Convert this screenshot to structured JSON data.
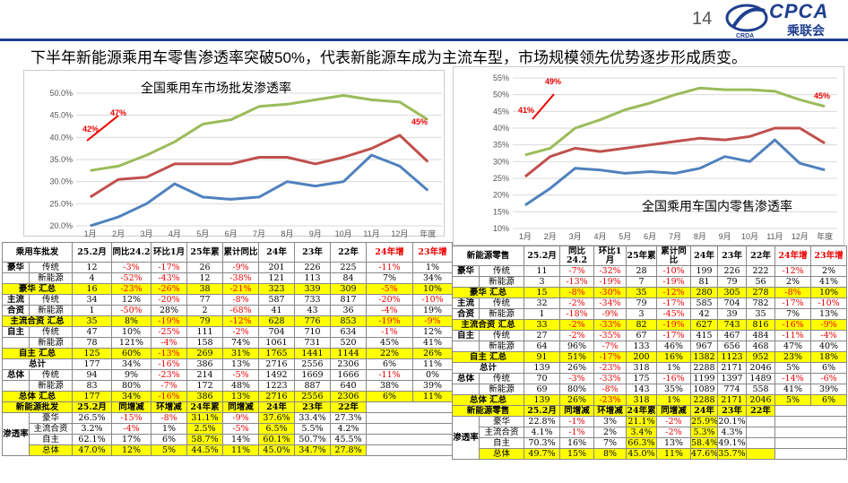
{
  "page": {
    "number": "14",
    "headline": "下半年新能源乘用车零售渗透率突破50%，代表新能源车成为主流车型，市场规模领先优势逐步形成质变。",
    "logo_text": "CPCA",
    "logo_cn": "乘联会",
    "logo_sub": "CRDA"
  },
  "chart_data": [
    {
      "type": "line",
      "title": "全国乘用车市场批发渗透率",
      "categories": [
        "1月",
        "2月",
        "3月",
        "4月",
        "5月",
        "6月",
        "7月",
        "8月",
        "9月",
        "10月",
        "11月",
        "12月",
        "年度"
      ],
      "yticks": [
        "50.0%",
        "45.0%",
        "40.0%",
        "35.0%",
        "30.0%",
        "25.0%",
        "20.0%"
      ],
      "ylim": [
        20,
        50
      ],
      "series": [
        {
          "color": "#9bbb59",
          "values": [
            32.5,
            33.5,
            36,
            39,
            43,
            44,
            47,
            47.5,
            48.5,
            49.5,
            48.5,
            48,
            44
          ]
        },
        {
          "color": "#c0504d",
          "values": [
            26.5,
            30.5,
            31,
            34,
            34,
            34,
            35.5,
            35.5,
            34,
            35.5,
            37.5,
            40.5,
            34.5
          ]
        },
        {
          "color": "#4f81bd",
          "values": [
            20,
            22,
            25,
            29.5,
            26.5,
            26,
            26.5,
            30,
            29,
            30,
            36,
            33.5,
            28
          ]
        }
      ],
      "annotations": [
        "42%",
        "47%",
        "45%"
      ]
    },
    {
      "type": "line",
      "title": "全国乘用车国内零售渗透率",
      "categories": [
        "1月",
        "2月",
        "3月",
        "4月",
        "5月",
        "6月",
        "7月",
        "8月",
        "9月",
        "10月",
        "11月",
        "12月",
        "年度"
      ],
      "yticks": [
        "55%",
        "50%",
        "45%",
        "40%",
        "35%",
        "30%",
        "25%",
        "20%",
        "15%",
        "10%"
      ],
      "ylim": [
        10,
        55
      ],
      "series": [
        {
          "color": "#9bbb59",
          "values": [
            32,
            34,
            40,
            42.5,
            45.5,
            47.5,
            50,
            52,
            51.5,
            51.5,
            51,
            48.5,
            46.5
          ]
        },
        {
          "color": "#c0504d",
          "values": [
            25.5,
            31.5,
            34,
            33,
            34,
            35,
            36,
            37,
            36.5,
            37.5,
            40,
            40,
            35.5
          ]
        },
        {
          "color": "#4f81bd",
          "values": [
            17,
            22,
            28,
            27.5,
            26.5,
            27,
            26.5,
            28,
            31.5,
            30,
            36.5,
            29.5,
            27.5
          ]
        }
      ],
      "annotations": [
        "41%",
        "49%",
        "45%"
      ]
    }
  ],
  "left_table": {
    "headers": [
      "乘用车批发",
      "25.2月",
      "同比24.2",
      "环比1月",
      "25年累",
      "累计同比",
      "24年",
      "23年",
      "22年",
      "24年增",
      "23年增"
    ],
    "rows": [
      {
        "g": "豪华",
        "s": "传统",
        "v": [
          "12",
          "-3%",
          "-17%",
          "26",
          "-9%",
          "201",
          "226",
          "225",
          "-11%",
          "1%"
        ]
      },
      {
        "g": "",
        "s": "新能源",
        "v": [
          "4",
          "-52%",
          "-43%",
          "12",
          "-38%",
          "121",
          "113",
          "84",
          "7%",
          "34%"
        ]
      },
      {
        "g": "豪华 汇总",
        "s": "",
        "v": [
          "16",
          "-23%",
          "-26%",
          "38",
          "-21%",
          "323",
          "339",
          "309",
          "-5%",
          "10%"
        ],
        "y": 1
      },
      {
        "g": "主流",
        "s": "传统",
        "v": [
          "34",
          "12%",
          "-20%",
          "77",
          "-8%",
          "587",
          "733",
          "817",
          "-20%",
          "-10%"
        ]
      },
      {
        "g": "合资",
        "s": "新能源",
        "v": [
          "1",
          "-50%",
          "28%",
          "2",
          "-68%",
          "41",
          "43",
          "36",
          "-4%",
          "19%"
        ]
      },
      {
        "g": "主流合资 汇总",
        "s": "",
        "v": [
          "35",
          "8%",
          "-19%",
          "79",
          "-12%",
          "628",
          "776",
          "853",
          "-19%",
          "-9%"
        ],
        "y": 1
      },
      {
        "g": "自主",
        "s": "传统",
        "v": [
          "47",
          "10%",
          "-25%",
          "111",
          "-2%",
          "704",
          "710",
          "634",
          "-1%",
          "12%"
        ]
      },
      {
        "g": "",
        "s": "新能源",
        "v": [
          "78",
          "121%",
          "-4%",
          "158",
          "74%",
          "1061",
          "731",
          "520",
          "45%",
          "41%"
        ]
      },
      {
        "g": "自主 汇总",
        "s": "",
        "v": [
          "125",
          "60%",
          "-13%",
          "269",
          "31%",
          "1765",
          "1441",
          "1144",
          "22%",
          "26%"
        ],
        "y": 1
      },
      {
        "g": "总计",
        "s": "",
        "v": [
          "177",
          "34%",
          "-16%",
          "386",
          "13%",
          "2716",
          "2556",
          "2306",
          "6%",
          "11%"
        ]
      },
      {
        "g": "总体",
        "s": "传统",
        "v": [
          "94",
          "9%",
          "-23%",
          "214",
          "-5%",
          "1492",
          "1669",
          "1666",
          "-11%",
          "0%"
        ]
      },
      {
        "g": "",
        "s": "新能源",
        "v": [
          "83",
          "80%",
          "-7%",
          "172",
          "48%",
          "1223",
          "887",
          "640",
          "38%",
          "39%"
        ]
      },
      {
        "g": "总体 汇总",
        "s": "",
        "v": [
          "177",
          "34%",
          "-16%",
          "386",
          "13%",
          "2716",
          "2556",
          "2306",
          "6%",
          "11%"
        ],
        "y": 1
      }
    ],
    "pen_header": [
      "新能源批发",
      "25.2月",
      "同增减",
      "环增减",
      "24年累",
      "同增减",
      "24年",
      "23年",
      "22年"
    ],
    "pen_group": "渗透率",
    "pen_rows": [
      {
        "s": "豪华",
        "v": [
          "26.5%",
          "-15%",
          "-8%",
          "31.1%",
          "-9%",
          "37.6%",
          "33.4%",
          "27.3%"
        ]
      },
      {
        "s": "主流合资",
        "v": [
          "3.2%",
          "-4%",
          "1%",
          "2.5%",
          "-5%",
          "6.5%",
          "5.5%",
          "4.2%"
        ]
      },
      {
        "s": "自主",
        "v": [
          "62.1%",
          "17%",
          "6%",
          "58.7%",
          "14%",
          "60.1%",
          "50.7%",
          "45.5%"
        ]
      },
      {
        "s": "总体",
        "v": [
          "47.0%",
          "12%",
          "5%",
          "44.5%",
          "11%",
          "45.0%",
          "34.7%",
          "27.8%"
        ]
      }
    ]
  },
  "right_table": {
    "headers": [
      "新能源零售",
      "25.2月",
      "同比24.2",
      "环比1月",
      "25年累",
      "累计同比",
      "24年",
      "23年",
      "22年",
      "24年增",
      "23年增"
    ],
    "rows": [
      {
        "g": "豪华",
        "s": "传统",
        "v": [
          "11",
          "-7%",
          "-32%",
          "28",
          "-10%",
          "199",
          "226",
          "222",
          "-12%",
          "2%"
        ]
      },
      {
        "g": "",
        "s": "新能源",
        "v": [
          "3",
          "-13%",
          "-19%",
          "7",
          "-19%",
          "81",
          "79",
          "56",
          "2%",
          "41%"
        ]
      },
      {
        "g": "豪华 汇总",
        "s": "",
        "v": [
          "15",
          "-8%",
          "-30%",
          "35",
          "-12%",
          "280",
          "305",
          "278",
          "-8%",
          "10%"
        ],
        "y": 1
      },
      {
        "g": "主流",
        "s": "传统",
        "v": [
          "32",
          "-2%",
          "-34%",
          "79",
          "-17%",
          "585",
          "704",
          "782",
          "-17%",
          "-10%"
        ]
      },
      {
        "g": "合资",
        "s": "新能源",
        "v": [
          "1",
          "-18%",
          "-9%",
          "3",
          "-45%",
          "42",
          "39",
          "35",
          "7%",
          "13%"
        ]
      },
      {
        "g": "主流合资 汇总",
        "s": "",
        "v": [
          "33",
          "-2%",
          "-33%",
          "82",
          "-19%",
          "627",
          "743",
          "816",
          "-16%",
          "-9%"
        ],
        "y": 1
      },
      {
        "g": "自主",
        "s": "传统",
        "v": [
          "27",
          "-2%",
          "-35%",
          "67",
          "-17%",
          "415",
          "467",
          "484",
          "-11%",
          "-4%"
        ]
      },
      {
        "g": "",
        "s": "新能源",
        "v": [
          "64",
          "96%",
          "-7%",
          "133",
          "46%",
          "967",
          "656",
          "468",
          "47%",
          "40%"
        ]
      },
      {
        "g": "自主 汇总",
        "s": "",
        "v": [
          "91",
          "51%",
          "-17%",
          "200",
          "16%",
          "1382",
          "1123",
          "952",
          "23%",
          "18%"
        ],
        "y": 1
      },
      {
        "g": "总计",
        "s": "",
        "v": [
          "139",
          "26%",
          "-23%",
          "318",
          "1%",
          "2288",
          "2171",
          "2046",
          "5%",
          "6%"
        ]
      },
      {
        "g": "总体",
        "s": "传统",
        "v": [
          "70",
          "-3%",
          "-33%",
          "175",
          "-16%",
          "1199",
          "1397",
          "1489",
          "-14%",
          "-6%"
        ]
      },
      {
        "g": "",
        "s": "新能源",
        "v": [
          "69",
          "80%",
          "-8%",
          "143",
          "35%",
          "1089",
          "774",
          "558",
          "41%",
          "39%"
        ]
      },
      {
        "g": "总体 汇总",
        "s": "",
        "v": [
          "139",
          "26%",
          "-23%",
          "318",
          "1%",
          "2288",
          "2171",
          "2046",
          "5%",
          "6%"
        ],
        "y": 1
      }
    ],
    "pen_header": [
      "新能源零售",
      "25.2月",
      "同增减",
      "环增减",
      "24年累",
      "同增减",
      "24年",
      "23年",
      "22年"
    ],
    "pen_group": "渗透率",
    "pen_rows": [
      {
        "s": "豪华",
        "v": [
          "22.8%",
          "-1%",
          "3%",
          "21.1%",
          "-2%",
          "25.9%",
          "20.1%",
          ""
        ]
      },
      {
        "s": "主流合资",
        "v": [
          "4.1%",
          "-1%",
          "2%",
          "3.4%",
          "-2%",
          "5.3%",
          "4.3%",
          ""
        ]
      },
      {
        "s": "自主",
        "v": [
          "70.3%",
          "16%",
          "7%",
          "66.3%",
          "13%",
          "58.4%",
          "49.1%",
          ""
        ]
      },
      {
        "s": "总体",
        "v": [
          "49.7%",
          "15%",
          "8%",
          "45.0%",
          "11%",
          "47.6%",
          "35.7%",
          ""
        ]
      }
    ]
  }
}
